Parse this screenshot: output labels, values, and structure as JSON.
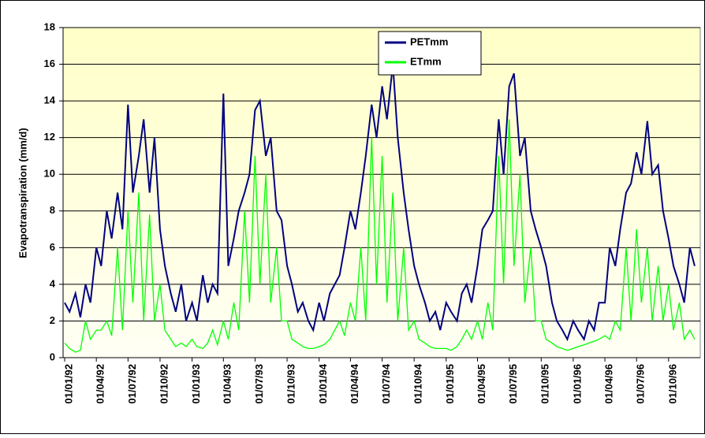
{
  "chart_data": {
    "type": "line",
    "y_label": "Evapotranspiration (mm/d)",
    "x": [
      "01/01/92",
      "15/01/92",
      "01/02/92",
      "15/02/92",
      "01/03/92",
      "15/03/92",
      "01/04/92",
      "15/04/92",
      "01/05/92",
      "15/05/92",
      "01/06/92",
      "15/06/92",
      "01/07/92",
      "15/07/92",
      "01/08/92",
      "15/08/92",
      "01/09/92",
      "15/09/92",
      "01/10/92",
      "15/10/92",
      "01/11/92",
      "15/11/92",
      "01/12/92",
      "15/12/92",
      "01/01/93",
      "15/01/93",
      "01/02/93",
      "15/02/93",
      "01/03/93",
      "15/03/93",
      "01/04/93",
      "15/04/93",
      "01/05/93",
      "15/05/93",
      "01/06/93",
      "15/06/93",
      "01/07/93",
      "15/07/93",
      "01/08/93",
      "15/08/93",
      "01/09/93",
      "15/09/93",
      "01/10/93",
      "15/10/93",
      "01/11/93",
      "15/11/93",
      "01/12/93",
      "15/12/93",
      "01/01/94",
      "15/01/94",
      "01/02/94",
      "15/02/94",
      "01/03/94",
      "15/03/94",
      "01/04/94",
      "15/04/94",
      "01/05/94",
      "15/05/94",
      "01/06/94",
      "15/06/94",
      "01/07/94",
      "15/07/94",
      "01/08/94",
      "15/08/94",
      "01/09/94",
      "15/09/94",
      "01/10/94",
      "15/10/94",
      "01/11/94",
      "15/11/94",
      "01/12/94",
      "15/12/94",
      "01/01/95",
      "15/01/95",
      "01/02/95",
      "15/02/95",
      "01/03/95",
      "15/03/95",
      "01/04/95",
      "15/04/95",
      "01/05/95",
      "15/05/95",
      "01/06/95",
      "15/06/95",
      "01/07/95",
      "15/07/95",
      "01/08/95",
      "15/08/95",
      "01/09/95",
      "15/09/95",
      "01/10/95",
      "15/10/95",
      "01/11/95",
      "15/11/95",
      "01/12/95",
      "15/12/95",
      "01/01/96",
      "15/01/96",
      "01/02/96",
      "15/02/96",
      "01/03/96",
      "15/03/96",
      "01/04/96",
      "15/04/96",
      "01/05/96",
      "15/05/96",
      "01/06/96",
      "15/06/96",
      "01/07/96",
      "15/07/96",
      "01/08/96",
      "15/08/96",
      "01/09/96",
      "15/09/96",
      "01/10/96",
      "15/10/96",
      "01/11/96",
      "15/11/96",
      "01/12/96",
      "15/12/96"
    ],
    "series": [
      {
        "name": "PETmm",
        "color": "#000080",
        "values": [
          3,
          2.5,
          3.5,
          2.2,
          4,
          3,
          6,
          5,
          8,
          6.5,
          9,
          7,
          13.8,
          9,
          11,
          13,
          9,
          12,
          7,
          5,
          3.5,
          2.5,
          4,
          2,
          3,
          2,
          4.5,
          3,
          4,
          3.5,
          14.4,
          5,
          6.5,
          8,
          9,
          10,
          13.5,
          14,
          11,
          12,
          8,
          7.5,
          5,
          4,
          2.5,
          3,
          2,
          1.5,
          3,
          2,
          3.5,
          4,
          4.5,
          6,
          8,
          7,
          9,
          11,
          13.8,
          12,
          14.8,
          13,
          16,
          12,
          9,
          7,
          5,
          4,
          3,
          2,
          2.5,
          1.5,
          3,
          2.5,
          2,
          3.5,
          4,
          3,
          5,
          7,
          7.5,
          8,
          13,
          10,
          14.8,
          15.5,
          11,
          12,
          8,
          7,
          6,
          5,
          3,
          2,
          1.5,
          1,
          2,
          1.5,
          1,
          2,
          1.5,
          3,
          3,
          6,
          5,
          7,
          9,
          9.5,
          11.2,
          10,
          12.9,
          10,
          10.5,
          8,
          6.5,
          5,
          4,
          3,
          6,
          5
        ]
      },
      {
        "name": "ETmm",
        "color": "#00ff00",
        "values": [
          0.8,
          0.5,
          0.3,
          0.4,
          2,
          1,
          1.5,
          1.5,
          2,
          1.2,
          6,
          1.5,
          8,
          3,
          9,
          2,
          7.8,
          2,
          4,
          1.5,
          1,
          0.6,
          0.8,
          0.6,
          1,
          0.6,
          0.5,
          0.8,
          1.5,
          0.7,
          2,
          1,
          3,
          1.5,
          8,
          3,
          11,
          4,
          10,
          3,
          6,
          2,
          2,
          1,
          0.8,
          0.6,
          0.5,
          0.5,
          0.6,
          0.7,
          1,
          1.5,
          2,
          1.2,
          3,
          2,
          6,
          2,
          12,
          4,
          11,
          3,
          9,
          2,
          6,
          1.5,
          2,
          1,
          0.8,
          0.6,
          0.5,
          0.5,
          0.5,
          0.4,
          0.6,
          1,
          1.5,
          1,
          2,
          1,
          3,
          1.5,
          11,
          4,
          13,
          5,
          10,
          3,
          6,
          2,
          2,
          1,
          0.8,
          0.6,
          0.5,
          0.4,
          0.5,
          0.6,
          0.7,
          0.8,
          0.9,
          1,
          1.2,
          1,
          2,
          1.5,
          6,
          2,
          7,
          3,
          6,
          2,
          5,
          2,
          4,
          1.5,
          3,
          1,
          1.5,
          1
        ]
      }
    ],
    "xlim": [
      "01/01/92",
      "31/12/96"
    ],
    "xticks": [
      "01/01/92",
      "01/04/92",
      "01/07/92",
      "01/10/92",
      "01/01/93",
      "01/04/93",
      "01/07/93",
      "01/10/93",
      "01/01/94",
      "01/04/94",
      "01/07/94",
      "01/10/94",
      "01/01/95",
      "01/04/95",
      "01/07/95",
      "01/10/95",
      "01/01/96",
      "01/04/96",
      "01/07/96",
      "01/10/96"
    ],
    "ylim": [
      0,
      18
    ],
    "yticks": [
      0,
      2,
      4,
      6,
      8,
      10,
      12,
      14,
      16,
      18
    ],
    "grid": true,
    "legend": "top-center"
  }
}
